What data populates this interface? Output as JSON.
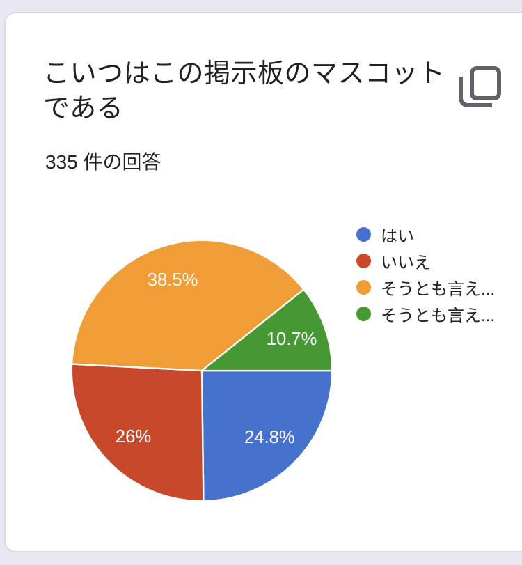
{
  "header": {
    "title": "こいつはこの掲示板のマスコットである",
    "title_lines": [
      "こいつはこの掲示板のマスコット",
      "である"
    ],
    "responses_text": "335 件の回答",
    "response_count": 335
  },
  "icons": {
    "copy": "content-copy (two overlapping rounded rectangles)"
  },
  "colors": {
    "page_background": "#E9E7F1",
    "card_background": "#FFFFFF",
    "card_border": "#DBD9E2",
    "text_primary": "#202124",
    "icon_gray": "#5F6368",
    "pie_label_text": "#FFFFFF",
    "slice_separator": "#FFFFFF"
  },
  "chart_data": {
    "type": "pie",
    "title": "こいつはこの掲示板のマスコットである",
    "subtitle": "335 件の回答",
    "total_responses": 335,
    "legend_position": "right",
    "start_angle_deg_clockwise_from_east": 0,
    "slices": [
      {
        "label": "はい",
        "value_pct": 24.8,
        "display": "24.8%",
        "color": "#4672CE"
      },
      {
        "label": "いいえ",
        "value_pct": 26,
        "display": "26%",
        "color": "#C8482B"
      },
      {
        "label": "そうとも言え...",
        "value_pct": 38.5,
        "display": "38.5%",
        "color": "#F09D38"
      },
      {
        "label": "そうとも言え...",
        "value_pct": 10.7,
        "display": "10.7%",
        "color": "#459833"
      }
    ]
  }
}
